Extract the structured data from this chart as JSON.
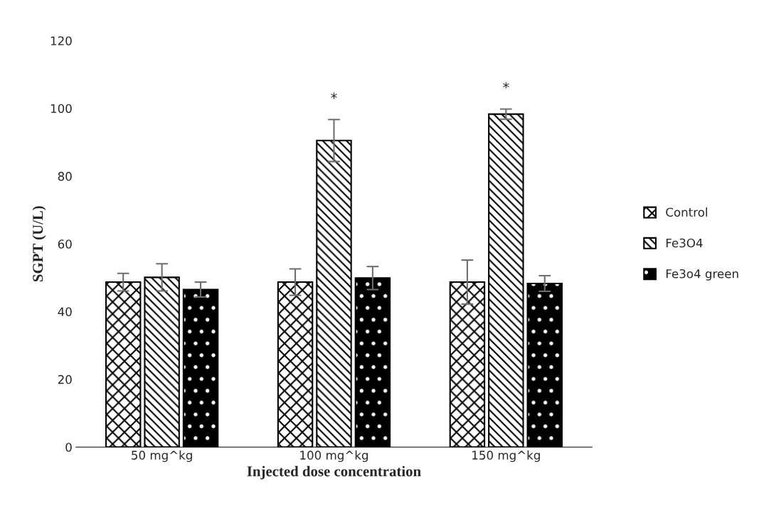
{
  "chart_data": {
    "type": "bar",
    "categories": [
      "50 mg^kg",
      "100 mg^kg",
      "150 mg^kg"
    ],
    "series": [
      {
        "name": "Control",
        "color": "#000000",
        "values": [
          48.7,
          48.7,
          48.7
        ],
        "errors": [
          2.6,
          3.9,
          6.5
        ]
      },
      {
        "name": "Fe3O4",
        "color": "#000000",
        "values": [
          50.1,
          90.5,
          98.3
        ],
        "errors": [
          4,
          6.2,
          1.5
        ]
      },
      {
        "name": "Fe3o4 green",
        "color": "#000000",
        "values": [
          46.5,
          49.9,
          48.3
        ],
        "errors": [
          2.2,
          3.4,
          2.3
        ]
      }
    ],
    "xlabel": "Injected dose concentration",
    "ylabel": "SGPT (U/L)",
    "ylim": [
      0,
      120
    ],
    "yticks": [
      0,
      20,
      40,
      60,
      80,
      100,
      120
    ],
    "annotations": [
      "*",
      "*"
    ],
    "legend": "right",
    "grid": false
  }
}
